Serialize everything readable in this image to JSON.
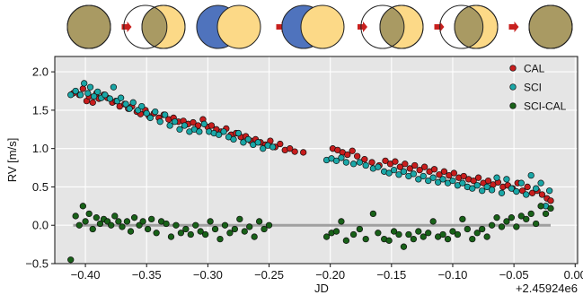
{
  "phase_strip": {
    "colors": {
      "star": "#fcd987",
      "planet": "#4f73bd",
      "overlap": "#a99a63",
      "arrow": "#c8201e"
    },
    "offsets": [
      0,
      -0.42,
      -0.48,
      -0.44,
      -0.44,
      -0.34,
      0
    ],
    "planet_in_front": [
      true,
      true,
      false,
      false,
      true,
      true,
      true
    ]
  },
  "chart_data": {
    "type": "scatter",
    "xlabel": "JD",
    "ylabel": "RV [m/s]",
    "offset_text": "+2.45924e6",
    "x_range": [
      -0.425,
      0.002
    ],
    "y_range": [
      -0.5,
      2.2
    ],
    "x_ticks": [
      -0.4,
      -0.35,
      -0.3,
      -0.25,
      -0.2,
      -0.15,
      -0.1,
      -0.05,
      0.0
    ],
    "x_tick_labels": [
      "−0.40",
      "−0.35",
      "−0.30",
      "−0.25",
      "−0.20",
      "−0.15",
      "−0.10",
      "−0.05",
      "0.00"
    ],
    "y_ticks": [
      -0.5,
      0.0,
      0.5,
      1.0,
      1.5,
      2.0
    ],
    "y_tick_labels": [
      "−0.5",
      "0.0",
      "0.5",
      "1.0",
      "1.5",
      "2.0"
    ],
    "grid": true,
    "legend_position": "top-right",
    "background": "#e5e5e5",
    "zero_line": {
      "y": 0.0,
      "x_from": -0.41,
      "x_to": -0.02,
      "color": "#a0a0a0"
    },
    "series": [
      {
        "name": "CAL",
        "color": "#c81d1d",
        "points": [
          [
            -0.41,
            1.72
          ],
          [
            -0.405,
            1.7
          ],
          [
            -0.402,
            1.78
          ],
          [
            -0.399,
            1.62
          ],
          [
            -0.397,
            1.68
          ],
          [
            -0.394,
            1.6
          ],
          [
            -0.391,
            1.72
          ],
          [
            -0.389,
            1.65
          ],
          [
            -0.385,
            1.7
          ],
          [
            -0.382,
            1.66
          ],
          [
            -0.378,
            1.6
          ],
          [
            -0.375,
            1.62
          ],
          [
            -0.372,
            1.55
          ],
          [
            -0.368,
            1.58
          ],
          [
            -0.365,
            1.52
          ],
          [
            -0.362,
            1.55
          ],
          [
            -0.358,
            1.48
          ],
          [
            -0.355,
            1.45
          ],
          [
            -0.351,
            1.5
          ],
          [
            -0.348,
            1.42
          ],
          [
            -0.344,
            1.46
          ],
          [
            -0.34,
            1.4
          ],
          [
            -0.336,
            1.44
          ],
          [
            -0.332,
            1.38
          ],
          [
            -0.328,
            1.4
          ],
          [
            -0.324,
            1.35
          ],
          [
            -0.32,
            1.36
          ],
          [
            -0.316,
            1.32
          ],
          [
            -0.312,
            1.34
          ],
          [
            -0.308,
            1.3
          ],
          [
            -0.304,
            1.38
          ],
          [
            -0.3,
            1.28
          ],
          [
            -0.297,
            1.3
          ],
          [
            -0.293,
            1.25
          ],
          [
            -0.289,
            1.22
          ],
          [
            -0.285,
            1.26
          ],
          [
            -0.281,
            1.18
          ],
          [
            -0.277,
            1.2
          ],
          [
            -0.273,
            1.15
          ],
          [
            -0.269,
            1.16
          ],
          [
            -0.265,
            1.1
          ],
          [
            -0.261,
            1.12
          ],
          [
            -0.257,
            1.08
          ],
          [
            -0.253,
            1.05
          ],
          [
            -0.249,
            1.1
          ],
          [
            -0.245,
            1.02
          ],
          [
            -0.241,
            1.06
          ],
          [
            -0.237,
            0.98
          ],
          [
            -0.233,
            1.0
          ],
          [
            -0.229,
            0.96
          ],
          [
            -0.222,
            0.95
          ],
          [
            -0.198,
            1.0
          ],
          [
            -0.194,
            0.98
          ],
          [
            -0.19,
            0.95
          ],
          [
            -0.186,
            0.92
          ],
          [
            -0.182,
            0.97
          ],
          [
            -0.178,
            0.9
          ],
          [
            -0.172,
            0.86
          ],
          [
            -0.166,
            0.82
          ],
          [
            -0.16,
            0.78
          ],
          [
            -0.155,
            0.84
          ],
          [
            -0.151,
            0.8
          ],
          [
            -0.147,
            0.83
          ],
          [
            -0.143,
            0.76
          ],
          [
            -0.139,
            0.8
          ],
          [
            -0.135,
            0.74
          ],
          [
            -0.131,
            0.78
          ],
          [
            -0.127,
            0.72
          ],
          [
            -0.123,
            0.76
          ],
          [
            -0.119,
            0.7
          ],
          [
            -0.115,
            0.73
          ],
          [
            -0.111,
            0.66
          ],
          [
            -0.107,
            0.7
          ],
          [
            -0.103,
            0.65
          ],
          [
            -0.099,
            0.68
          ],
          [
            -0.095,
            0.62
          ],
          [
            -0.091,
            0.64
          ],
          [
            -0.087,
            0.6
          ],
          [
            -0.083,
            0.58
          ],
          [
            -0.079,
            0.62
          ],
          [
            -0.075,
            0.55
          ],
          [
            -0.071,
            0.58
          ],
          [
            -0.067,
            0.53
          ],
          [
            -0.063,
            0.56
          ],
          [
            -0.059,
            0.5
          ],
          [
            -0.055,
            0.52
          ],
          [
            -0.051,
            0.48
          ],
          [
            -0.047,
            0.55
          ],
          [
            -0.043,
            0.45
          ],
          [
            -0.039,
            0.5
          ],
          [
            -0.035,
            0.42
          ],
          [
            -0.031,
            0.45
          ],
          [
            -0.027,
            0.4
          ],
          [
            -0.023,
            0.35
          ],
          [
            -0.02,
            0.32
          ]
        ]
      },
      {
        "name": "SCI",
        "color": "#1aa7a7",
        "points": [
          [
            -0.412,
            1.7
          ],
          [
            -0.408,
            1.75
          ],
          [
            -0.404,
            1.7
          ],
          [
            -0.401,
            1.85
          ],
          [
            -0.398,
            1.72
          ],
          [
            -0.396,
            1.8
          ],
          [
            -0.393,
            1.68
          ],
          [
            -0.39,
            1.74
          ],
          [
            -0.387,
            1.66
          ],
          [
            -0.384,
            1.7
          ],
          [
            -0.38,
            1.65
          ],
          [
            -0.377,
            1.8
          ],
          [
            -0.374,
            1.62
          ],
          [
            -0.371,
            1.66
          ],
          [
            -0.367,
            1.58
          ],
          [
            -0.364,
            1.52
          ],
          [
            -0.361,
            1.6
          ],
          [
            -0.357,
            1.5
          ],
          [
            -0.354,
            1.55
          ],
          [
            -0.35,
            1.46
          ],
          [
            -0.347,
            1.4
          ],
          [
            -0.343,
            1.48
          ],
          [
            -0.339,
            1.35
          ],
          [
            -0.335,
            1.44
          ],
          [
            -0.331,
            1.3
          ],
          [
            -0.327,
            1.35
          ],
          [
            -0.323,
            1.25
          ],
          [
            -0.319,
            1.3
          ],
          [
            -0.315,
            1.22
          ],
          [
            -0.311,
            1.25
          ],
          [
            -0.307,
            1.22
          ],
          [
            -0.303,
            1.32
          ],
          [
            -0.299,
            1.22
          ],
          [
            -0.295,
            1.2
          ],
          [
            -0.291,
            1.18
          ],
          [
            -0.287,
            1.22
          ],
          [
            -0.283,
            1.15
          ],
          [
            -0.279,
            1.12
          ],
          [
            -0.275,
            1.2
          ],
          [
            -0.271,
            1.08
          ],
          [
            -0.267,
            1.12
          ],
          [
            -0.263,
            1.05
          ],
          [
            -0.259,
            1.08
          ],
          [
            -0.255,
            1.0
          ],
          [
            -0.251,
            1.04
          ],
          [
            -0.247,
            1.02
          ],
          [
            -0.203,
            0.85
          ],
          [
            -0.199,
            0.87
          ],
          [
            -0.195,
            0.84
          ],
          [
            -0.191,
            0.88
          ],
          [
            -0.187,
            0.82
          ],
          [
            -0.181,
            0.8
          ],
          [
            -0.176,
            0.82
          ],
          [
            -0.171,
            0.78
          ],
          [
            -0.165,
            0.74
          ],
          [
            -0.161,
            0.76
          ],
          [
            -0.156,
            0.7
          ],
          [
            -0.152,
            0.68
          ],
          [
            -0.148,
            0.72
          ],
          [
            -0.144,
            0.66
          ],
          [
            -0.14,
            0.7
          ],
          [
            -0.136,
            0.64
          ],
          [
            -0.132,
            0.67
          ],
          [
            -0.128,
            0.6
          ],
          [
            -0.124,
            0.64
          ],
          [
            -0.12,
            0.58
          ],
          [
            -0.116,
            0.62
          ],
          [
            -0.112,
            0.56
          ],
          [
            -0.108,
            0.6
          ],
          [
            -0.104,
            0.55
          ],
          [
            -0.1,
            0.58
          ],
          [
            -0.096,
            0.52
          ],
          [
            -0.092,
            0.55
          ],
          [
            -0.088,
            0.5
          ],
          [
            -0.084,
            0.48
          ],
          [
            -0.08,
            0.52
          ],
          [
            -0.076,
            0.45
          ],
          [
            -0.072,
            0.5
          ],
          [
            -0.068,
            0.46
          ],
          [
            -0.064,
            0.62
          ],
          [
            -0.06,
            0.42
          ],
          [
            -0.056,
            0.6
          ],
          [
            -0.052,
            0.48
          ],
          [
            -0.048,
            0.44
          ],
          [
            -0.044,
            0.55
          ],
          [
            -0.04,
            0.4
          ],
          [
            -0.036,
            0.65
          ],
          [
            -0.032,
            0.48
          ],
          [
            -0.028,
            0.55
          ],
          [
            -0.024,
            0.25
          ],
          [
            -0.021,
            0.45
          ]
        ]
      },
      {
        "name": "SCI-CAL",
        "color": "#186118",
        "points": [
          [
            -0.412,
            -0.45
          ],
          [
            -0.408,
            0.12
          ],
          [
            -0.405,
            0.0
          ],
          [
            -0.402,
            0.25
          ],
          [
            -0.4,
            0.05
          ],
          [
            -0.397,
            0.15
          ],
          [
            -0.394,
            -0.05
          ],
          [
            -0.391,
            0.1
          ],
          [
            -0.388,
            0.02
          ],
          [
            -0.385,
            0.08
          ],
          [
            -0.382,
            0.05
          ],
          [
            -0.379,
            0.0
          ],
          [
            -0.376,
            0.12
          ],
          [
            -0.373,
            0.05
          ],
          [
            -0.37,
            -0.02
          ],
          [
            -0.366,
            0.05
          ],
          [
            -0.363,
            -0.08
          ],
          [
            -0.36,
            0.1
          ],
          [
            -0.356,
            0.0
          ],
          [
            -0.353,
            0.05
          ],
          [
            -0.349,
            -0.05
          ],
          [
            -0.346,
            0.08
          ],
          [
            -0.342,
            -0.1
          ],
          [
            -0.338,
            0.05
          ],
          [
            -0.334,
            0.02
          ],
          [
            -0.33,
            -0.15
          ],
          [
            -0.326,
            0.0
          ],
          [
            -0.322,
            -0.1
          ],
          [
            -0.318,
            -0.05
          ],
          [
            -0.314,
            -0.12
          ],
          [
            -0.31,
            0.0
          ],
          [
            -0.306,
            -0.08
          ],
          [
            -0.302,
            -0.12
          ],
          [
            -0.298,
            0.05
          ],
          [
            -0.294,
            -0.05
          ],
          [
            -0.29,
            -0.18
          ],
          [
            -0.286,
            0.0
          ],
          [
            -0.282,
            -0.1
          ],
          [
            -0.278,
            -0.05
          ],
          [
            -0.274,
            0.08
          ],
          [
            -0.27,
            -0.08
          ],
          [
            -0.266,
            -0.02
          ],
          [
            -0.262,
            -0.15
          ],
          [
            -0.258,
            0.05
          ],
          [
            -0.254,
            -0.05
          ],
          [
            -0.25,
            0.0
          ],
          [
            -0.203,
            -0.15
          ],
          [
            -0.199,
            -0.1
          ],
          [
            -0.195,
            -0.08
          ],
          [
            -0.191,
            0.05
          ],
          [
            -0.187,
            -0.2
          ],
          [
            -0.181,
            -0.12
          ],
          [
            -0.176,
            -0.05
          ],
          [
            -0.171,
            -0.18
          ],
          [
            -0.165,
            0.15
          ],
          [
            -0.161,
            -0.1
          ],
          [
            -0.156,
            -0.18
          ],
          [
            -0.152,
            -0.2
          ],
          [
            -0.148,
            -0.08
          ],
          [
            -0.144,
            -0.12
          ],
          [
            -0.14,
            -0.28
          ],
          [
            -0.136,
            -0.12
          ],
          [
            -0.132,
            -0.18
          ],
          [
            -0.128,
            -0.08
          ],
          [
            -0.124,
            -0.15
          ],
          [
            -0.12,
            -0.1
          ],
          [
            -0.116,
            0.05
          ],
          [
            -0.112,
            -0.15
          ],
          [
            -0.108,
            -0.12
          ],
          [
            -0.104,
            -0.18
          ],
          [
            -0.1,
            -0.08
          ],
          [
            -0.096,
            -0.12
          ],
          [
            -0.092,
            0.08
          ],
          [
            -0.088,
            -0.05
          ],
          [
            -0.084,
            -0.18
          ],
          [
            -0.08,
            -0.1
          ],
          [
            -0.076,
            -0.05
          ],
          [
            -0.072,
            -0.15
          ],
          [
            -0.068,
            0.0
          ],
          [
            -0.064,
            0.1
          ],
          [
            -0.06,
            -0.02
          ],
          [
            -0.056,
            0.05
          ],
          [
            -0.052,
            0.1
          ],
          [
            -0.048,
            -0.02
          ],
          [
            -0.044,
            0.12
          ],
          [
            -0.04,
            0.08
          ],
          [
            -0.036,
            0.15
          ],
          [
            -0.032,
            0.02
          ],
          [
            -0.028,
            0.25
          ],
          [
            -0.024,
            0.15
          ],
          [
            -0.02,
            0.22
          ]
        ]
      }
    ]
  }
}
